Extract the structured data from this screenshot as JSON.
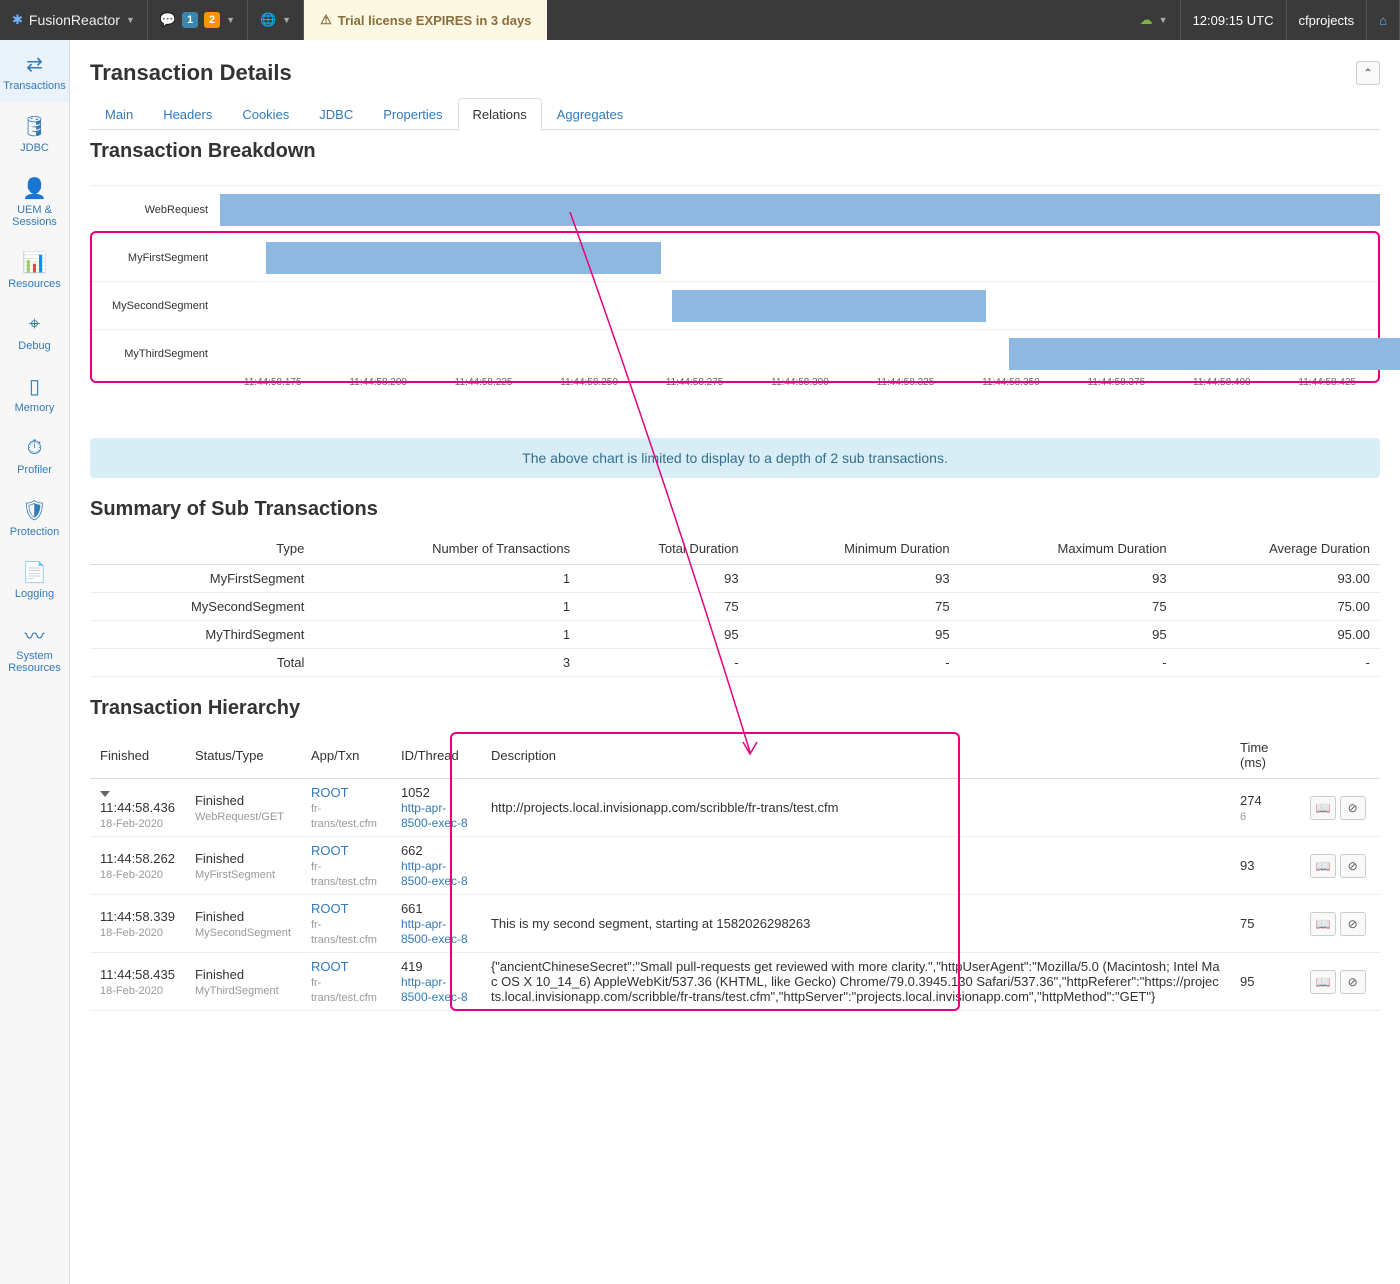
{
  "topbar": {
    "brand": "FusionReactor",
    "badges": [
      "1",
      "2"
    ],
    "trial_text": "Trial license EXPIRES in 3 days",
    "clock": "12:09:15 UTC",
    "project": "cfprojects"
  },
  "sidebar": {
    "items": [
      {
        "label": "Transactions",
        "icon": "⇄",
        "active": true
      },
      {
        "label": "JDBC",
        "icon": "🛢"
      },
      {
        "label": "UEM & Sessions",
        "icon": "👤"
      },
      {
        "label": "Resources",
        "icon": "📊"
      },
      {
        "label": "Debug",
        "icon": "⌖"
      },
      {
        "label": "Memory",
        "icon": "▯"
      },
      {
        "label": "Profiler",
        "icon": "⏱"
      },
      {
        "label": "Protection",
        "icon": "🛡"
      },
      {
        "label": "Logging",
        "icon": "📄"
      },
      {
        "label": "System Resources",
        "icon": "〰"
      }
    ]
  },
  "page": {
    "title": "Transaction Details",
    "breakdown_title": "Transaction Breakdown",
    "info_banner": "The above chart is limited to display to a depth of 2 sub transactions.",
    "summary_title": "Summary of Sub Transactions",
    "hierarchy_title": "Transaction Hierarchy"
  },
  "tabs": [
    "Main",
    "Headers",
    "Cookies",
    "JDBC",
    "Properties",
    "Relations",
    "Aggregates"
  ],
  "active_tab": "Relations",
  "chart": {
    "bar_color": "#8fb8e0",
    "highlight_color": "#e6007e",
    "rows": [
      {
        "label": "WebRequest",
        "left_pct": 0,
        "width_pct": 100
      },
      {
        "label": "MyFirstSegment",
        "left_pct": 4,
        "width_pct": 34
      },
      {
        "label": "MySecondSegment",
        "left_pct": 39,
        "width_pct": 27
      },
      {
        "label": "MyThirdSegment",
        "left_pct": 68,
        "width_pct": 34
      }
    ],
    "ticks": [
      "11:44:58.175",
      "11:44:58.200",
      "11:44:58.225",
      "11:44:58.250",
      "11:44:58.275",
      "11:44:58.300",
      "11:44:58.325",
      "11:44:58.350",
      "11:44:58.375",
      "11:44:58.400",
      "11:44:58.425"
    ]
  },
  "summary": {
    "columns": [
      "Type",
      "Number of Transactions",
      "Total Duration",
      "Minimum Duration",
      "Maximum Duration",
      "Average Duration"
    ],
    "rows": [
      [
        "MyFirstSegment",
        "1",
        "93",
        "93",
        "93",
        "93.00"
      ],
      [
        "MySecondSegment",
        "1",
        "75",
        "75",
        "75",
        "75.00"
      ],
      [
        "MyThirdSegment",
        "1",
        "95",
        "95",
        "95",
        "95.00"
      ],
      [
        "Total",
        "3",
        "-",
        "-",
        "-",
        "-"
      ]
    ]
  },
  "hierarchy": {
    "columns": [
      "Finished",
      "Status/Type",
      "App/Txn",
      "ID/Thread",
      "Description",
      "Time (ms)",
      ""
    ],
    "rows": [
      {
        "time": "11:44:58.436",
        "date": "18-Feb-2020",
        "status": "Finished",
        "type": "WebRequest/GET",
        "app": "ROOT",
        "txn": "fr-trans/test.cfm",
        "id": "1052",
        "thread": "http-apr-8500-exec-8",
        "desc": "http://projects.local.invisionapp.com/scribble/fr-trans/test.cfm",
        "ms": "274",
        "sub": "6",
        "expanded": true
      },
      {
        "time": "11:44:58.262",
        "date": "18-Feb-2020",
        "status": "Finished",
        "type": "MyFirstSegment",
        "app": "ROOT",
        "txn": "fr-trans/test.cfm",
        "id": "662",
        "thread": "http-apr-8500-exec-8",
        "desc": "",
        "ms": "93",
        "sub": ""
      },
      {
        "time": "11:44:58.339",
        "date": "18-Feb-2020",
        "status": "Finished",
        "type": "MySecondSegment",
        "app": "ROOT",
        "txn": "fr-trans/test.cfm",
        "id": "661",
        "thread": "http-apr-8500-exec-8",
        "desc": "This is my second segment, starting at 1582026298263",
        "ms": "75",
        "sub": ""
      },
      {
        "time": "11:44:58.435",
        "date": "18-Feb-2020",
        "status": "Finished",
        "type": "MyThirdSegment",
        "app": "ROOT",
        "txn": "fr-trans/test.cfm",
        "id": "419",
        "thread": "http-apr-8500-exec-8",
        "desc": "{\"ancientChineseSecret\":\"Small pull-requests get reviewed with more clarity.\",\"httpUserAgent\":\"Mozilla/5.0 (Macintosh; Intel Mac OS X 10_14_6) AppleWebKit/537.36 (KHTML, like Gecko) Chrome/79.0.3945.130 Safari/537.36\",\"httpReferer\":\"https://projects.local.invisionapp.com/scribble/fr-trans/test.cfm\",\"httpServer\":\"projects.local.invisionapp.com\",\"httpMethod\":\"GET\"}",
        "ms": "95",
        "sub": ""
      }
    ]
  }
}
